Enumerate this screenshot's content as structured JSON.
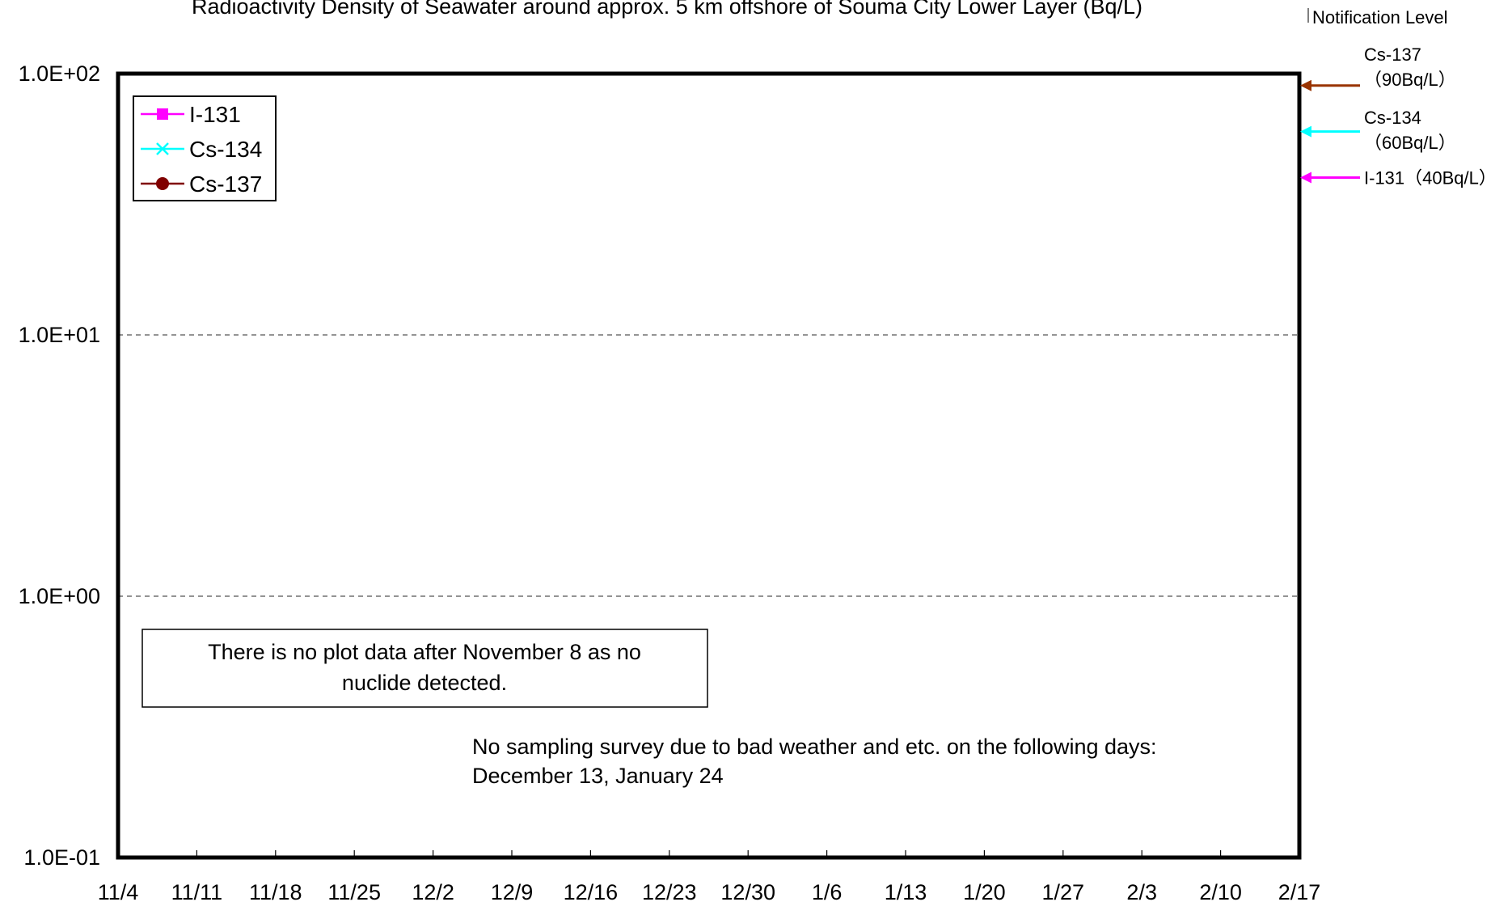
{
  "chart_data": {
    "type": "line",
    "title": "Radioactivity Density of Seawater around approx. 5 km offshore of Souma City Lower Layer (Bq/L)",
    "xlabel": "",
    "ylabel": "",
    "y_scale": "log",
    "ylim": [
      0.1,
      100
    ],
    "y_ticks": [
      {
        "value": 100,
        "label": "1.0E+02"
      },
      {
        "value": 10,
        "label": "1.0E+01"
      },
      {
        "value": 1,
        "label": "1.0E+00"
      },
      {
        "value": 0.1,
        "label": "1.0E-01"
      }
    ],
    "x_tick_labels": [
      "11/4",
      "11/11",
      "11/18",
      "11/25",
      "12/2",
      "12/9",
      "12/16",
      "12/23",
      "12/30",
      "1/6",
      "1/13",
      "1/20",
      "1/27",
      "2/3",
      "2/10",
      "2/17"
    ],
    "grid": "horizontal dashed",
    "legend_position": "top-left",
    "series": [
      {
        "name": "I-131",
        "color": "#ff00ff",
        "marker": "square",
        "values": []
      },
      {
        "name": "Cs-134",
        "color": "#00ffff",
        "marker": "x",
        "values": []
      },
      {
        "name": "Cs-137",
        "color": "#800000",
        "marker": "circle",
        "values": []
      }
    ],
    "notification_levels": {
      "heading": "Notification Level",
      "levels": [
        {
          "nuclide": "Cs-137",
          "value": 90,
          "label_line1": "Cs-137",
          "label_line2": "（90Bq/L）",
          "color": "#993300"
        },
        {
          "nuclide": "Cs-134",
          "value": 60,
          "label_line1": "Cs-134",
          "label_line2": "（60Bq/L）",
          "color": "#00ffff"
        },
        {
          "nuclide": "I-131",
          "value": 40,
          "label_line1": "I-131（40Bq/L）",
          "label_line2": "",
          "color": "#ff00ff"
        }
      ]
    },
    "annotations": {
      "no_data_box": [
        "There is no plot data after November 8 as no",
        "nuclide detected."
      ],
      "no_sampling": [
        "No sampling survey due to bad weather and etc. on the following days:",
        "December 13, January 24"
      ]
    }
  }
}
